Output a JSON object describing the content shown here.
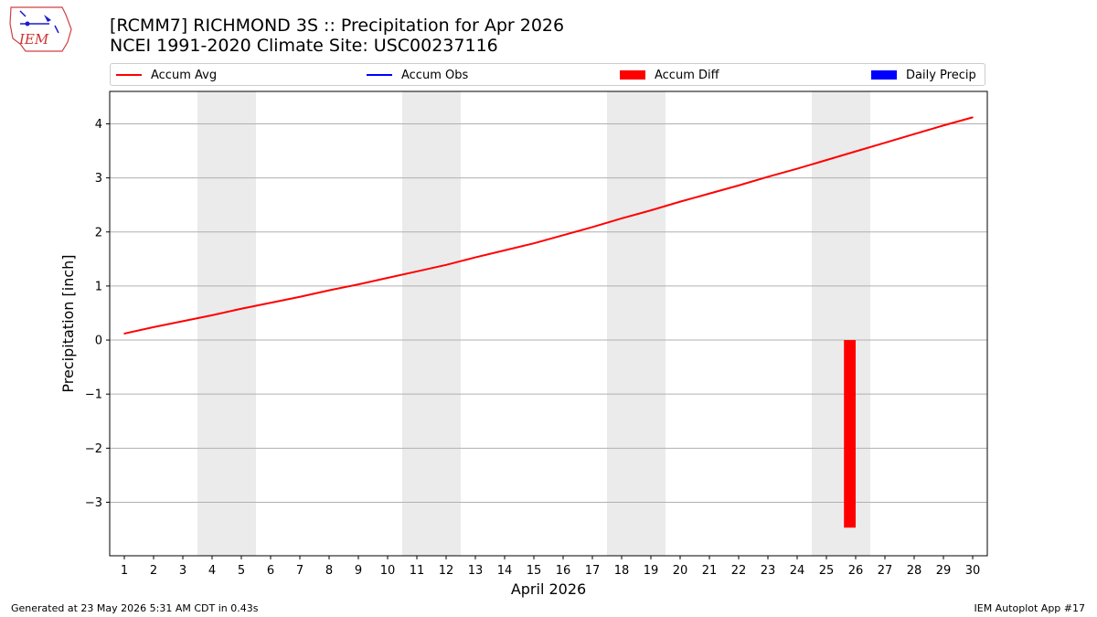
{
  "header": {
    "title_line1": "[RCMM7] RICHMOND 3S :: Precipitation for Apr 2026",
    "title_line2": "NCEI 1991-2020 Climate Site: USC00237116",
    "logo_text": "IEM"
  },
  "legend": [
    {
      "label": "Accum Avg",
      "color": "#ff0000",
      "kind": "line"
    },
    {
      "label": "Accum Obs",
      "color": "#0000ff",
      "kind": "line"
    },
    {
      "label": "Accum Diff",
      "color": "#ff0000",
      "kind": "patch"
    },
    {
      "label": "Daily Precip",
      "color": "#0000ff",
      "kind": "patch"
    }
  ],
  "footer": {
    "left": "Generated at 23 May 2026 5:31 AM CDT in 0.43s",
    "right": "IEM Autoplot App #17"
  },
  "chart_data": {
    "type": "line",
    "xlabel": "April 2026",
    "ylabel": "Precipitation [inch]",
    "x": [
      1,
      2,
      3,
      4,
      5,
      6,
      7,
      8,
      9,
      10,
      11,
      12,
      13,
      14,
      15,
      16,
      17,
      18,
      19,
      20,
      21,
      22,
      23,
      24,
      25,
      26,
      27,
      28,
      29,
      30
    ],
    "xlim": [
      0.5,
      30.5
    ],
    "ylim": [
      -3.99,
      4.6
    ],
    "yticks": [
      -3,
      -2,
      -1,
      0,
      1,
      2,
      3,
      4
    ],
    "ytick_labels": [
      "−3",
      "−2",
      "−1",
      "0",
      "1",
      "2",
      "3",
      "4"
    ],
    "grid": "horizontal",
    "weekend_shading": [
      [
        3.5,
        5.5
      ],
      [
        10.5,
        12.5
      ],
      [
        17.5,
        19.5
      ],
      [
        24.5,
        26.5
      ]
    ],
    "shade_color": "#ebebeb",
    "series": [
      {
        "name": "Accum Avg",
        "type": "line",
        "color": "#ff0000",
        "values": [
          0.12,
          0.24,
          0.35,
          0.46,
          0.58,
          0.69,
          0.8,
          0.92,
          1.03,
          1.15,
          1.27,
          1.39,
          1.53,
          1.66,
          1.79,
          1.94,
          2.09,
          2.25,
          2.4,
          2.56,
          2.71,
          2.86,
          3.02,
          3.17,
          3.33,
          3.49,
          3.65,
          3.81,
          3.97,
          4.12
        ]
      },
      {
        "name": "Accum Diff",
        "type": "bar",
        "color": "#ff0000",
        "points": [
          {
            "x": 25.8,
            "y": -3.47
          }
        ]
      }
    ]
  }
}
